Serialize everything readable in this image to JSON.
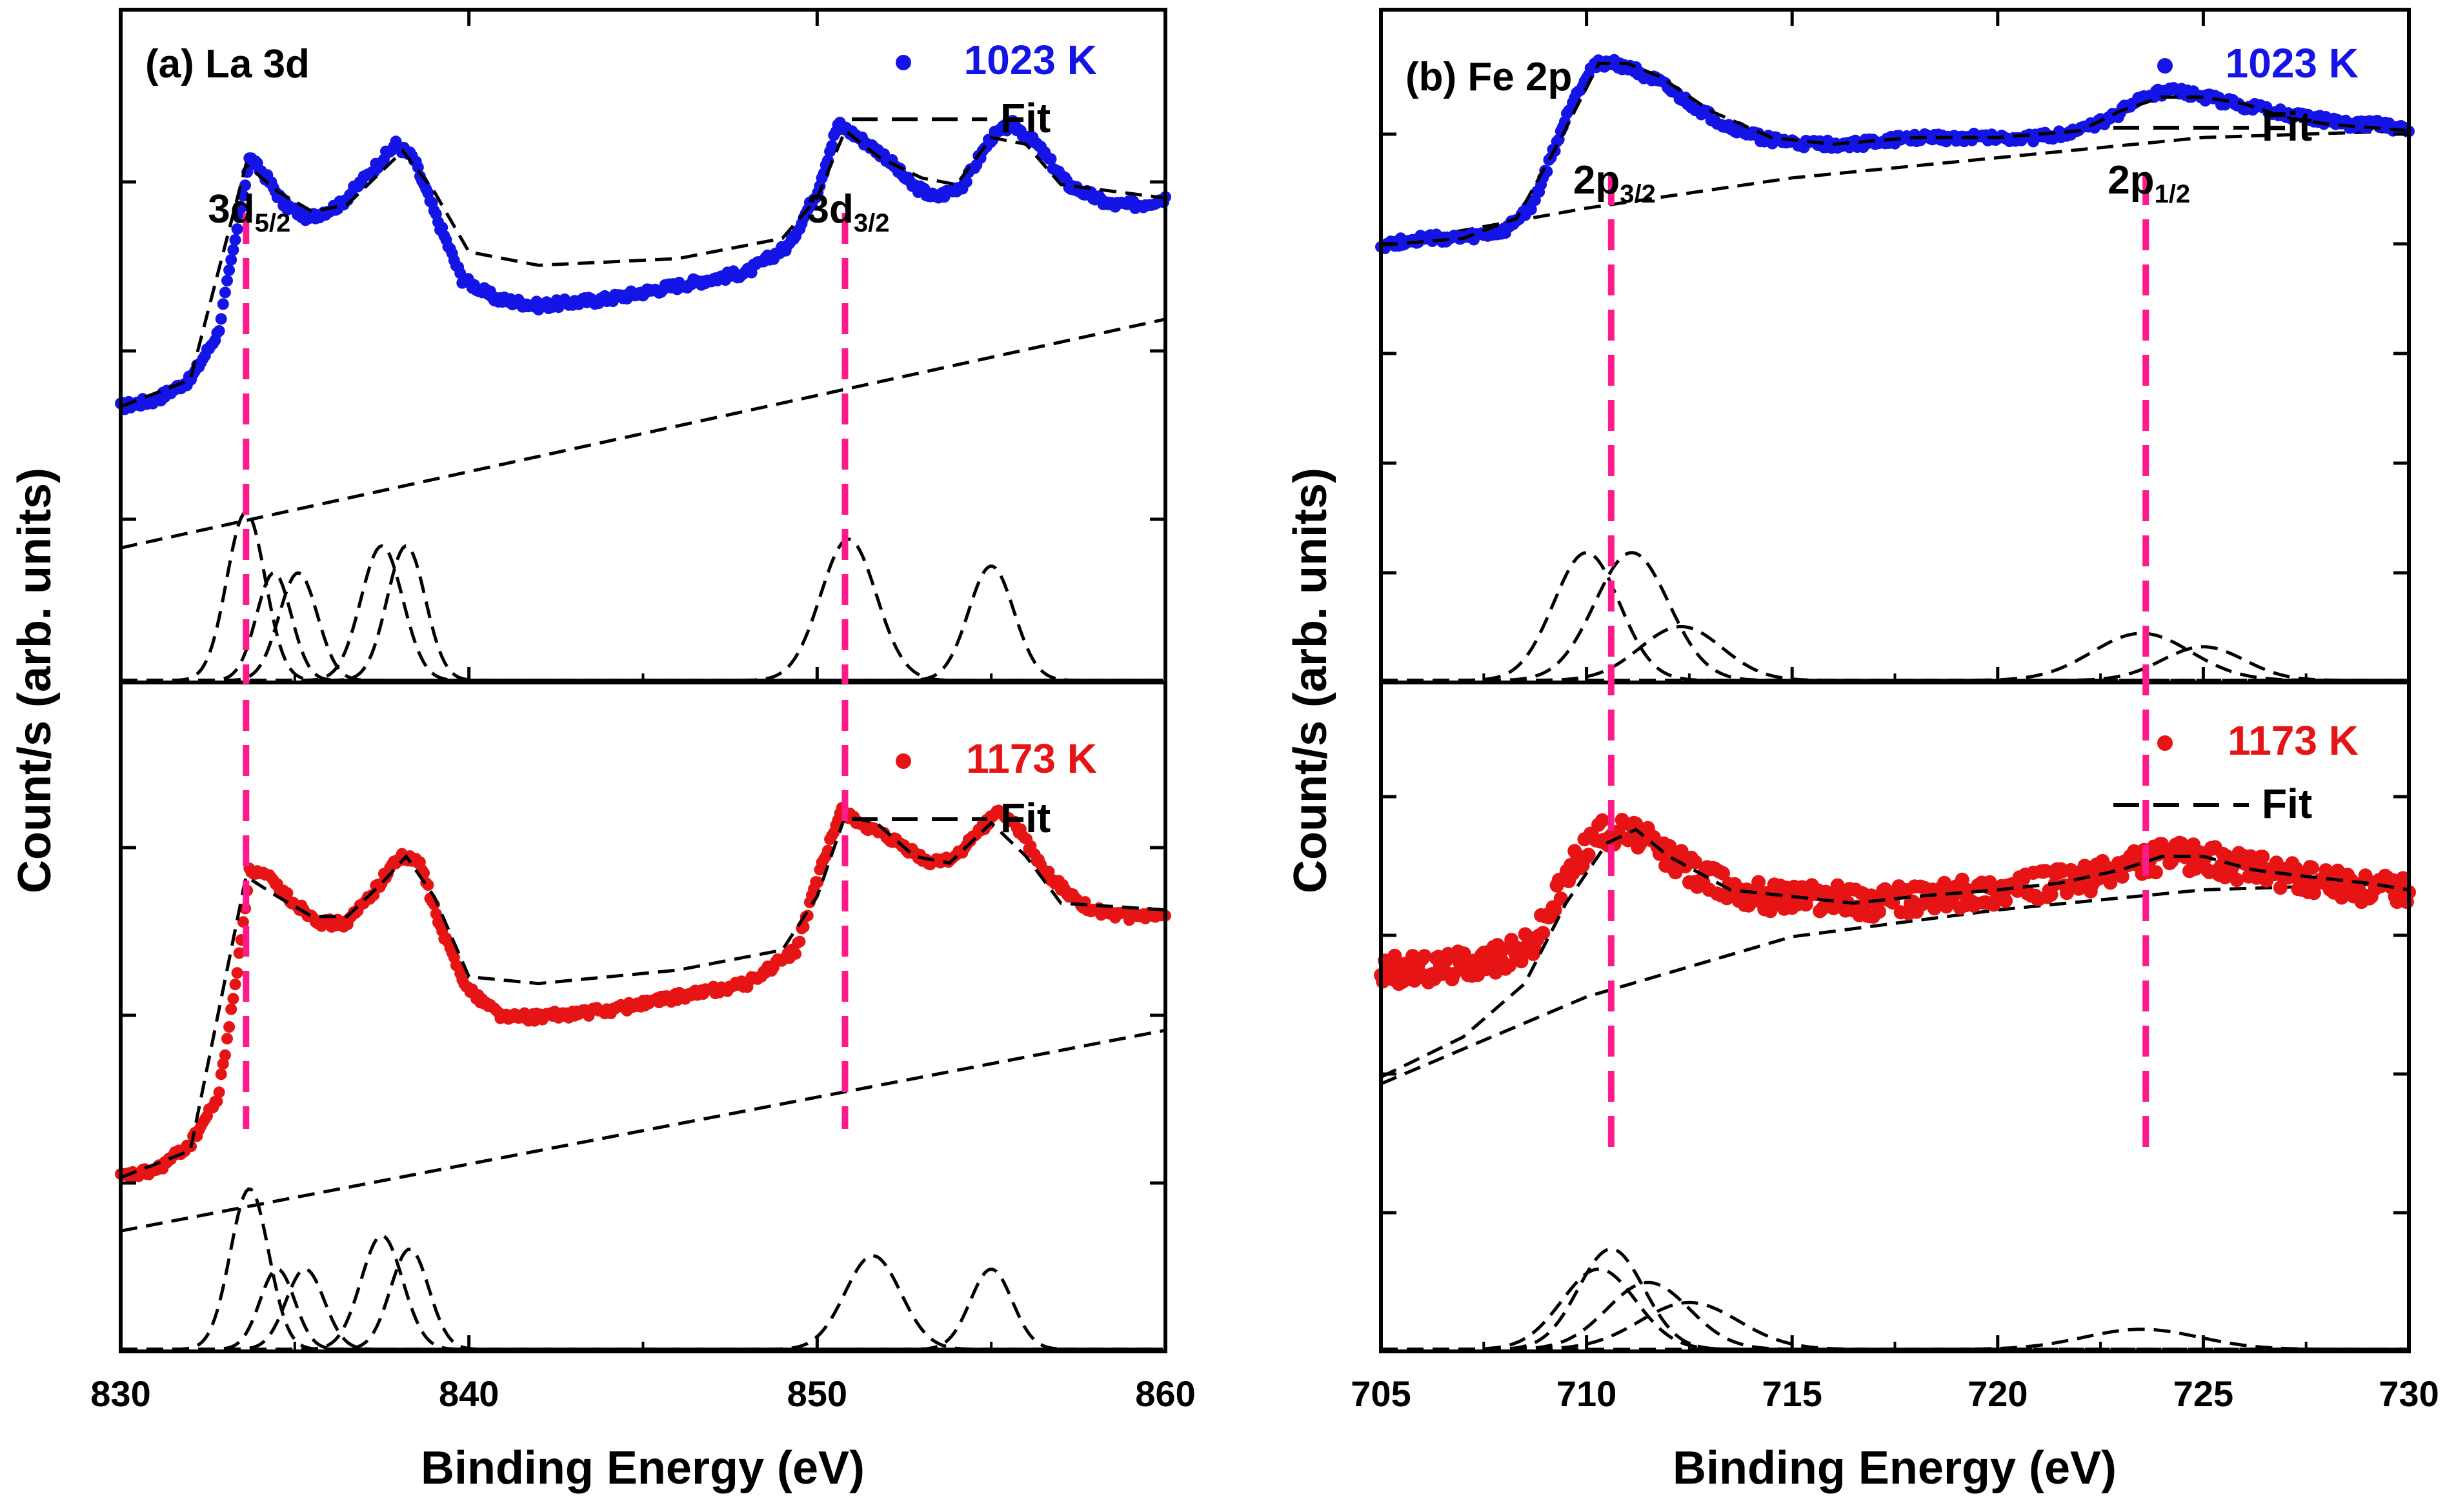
{
  "ylabel": "Count/s (arb. units)",
  "colors": {
    "series_1023": "#1414e6",
    "series_1173": "#e61414",
    "marker_line": "#ff1a8c",
    "fit": "#000000"
  },
  "chart_data": [
    {
      "id": "la3d",
      "type": "scatter",
      "panel_label": "(a) La 3d",
      "xlabel": "Binding Energy (eV)",
      "ylabel": "Count/s (arb. units)",
      "xlim": [
        830,
        860
      ],
      "x_ticks": [
        "830",
        "840",
        "850",
        "860"
      ],
      "peak_labels": [
        {
          "base": "3d",
          "sub": "5/2",
          "x": 833.6
        },
        {
          "base": "3d",
          "sub": "3/2",
          "x": 850.8
        }
      ],
      "subplots": [
        {
          "legend": {
            "series": "1023 K",
            "fit": "Fit"
          },
          "color": "#1414e6",
          "note": "intensity in arbitrary units (0 = panel baseline, 1 = panel top)",
          "data": {
            "x": [
              830,
              831,
              832,
              832.8,
              833.3,
              833.7,
              834.2,
              834.7,
              835.4,
              836.3,
              837.2,
              837.9,
              838.4,
              839,
              839.8,
              840.8,
              842,
              844,
              846,
              848,
              849.2,
              850,
              850.6,
              851.2,
              852,
              852.7,
              853.4,
              854.2,
              855,
              855.6,
              856.3,
              857.2,
              858.4,
              859.3,
              860
            ],
            "y": [
              0.41,
              0.42,
              0.45,
              0.52,
              0.66,
              0.78,
              0.75,
              0.71,
              0.69,
              0.71,
              0.76,
              0.8,
              0.78,
              0.7,
              0.6,
              0.57,
              0.56,
              0.57,
              0.59,
              0.61,
              0.65,
              0.73,
              0.83,
              0.81,
              0.78,
              0.74,
              0.72,
              0.74,
              0.81,
              0.83,
              0.8,
              0.74,
              0.71,
              0.71,
              0.72
            ]
          },
          "fit": {
            "x": [
              830,
              832,
              833.6,
              834.5,
              835.5,
              836.5,
              837.5,
              838.1,
              839,
              840,
              842,
              846,
              849,
              850,
              850.8,
              851.8,
              853,
              854,
              855,
              856,
              857,
              860
            ],
            "y": [
              0.41,
              0.45,
              0.77,
              0.73,
              0.7,
              0.71,
              0.76,
              0.79,
              0.73,
              0.64,
              0.62,
              0.63,
              0.66,
              0.72,
              0.82,
              0.78,
              0.75,
              0.74,
              0.81,
              0.8,
              0.74,
              0.72
            ]
          },
          "background": {
            "x": [
              830,
              860
            ],
            "y": [
              0.2,
              0.54
            ]
          },
          "components": [
            {
              "center": 833.6,
              "amp": 0.25,
              "width": 0.55
            },
            {
              "center": 834.4,
              "amp": 0.16,
              "width": 0.5
            },
            {
              "center": 835.1,
              "amp": 0.16,
              "width": 0.55
            },
            {
              "center": 837.5,
              "amp": 0.2,
              "width": 0.6
            },
            {
              "center": 838.2,
              "amp": 0.2,
              "width": 0.55
            },
            {
              "center": 850.9,
              "amp": 0.21,
              "width": 0.8
            },
            {
              "center": 855.0,
              "amp": 0.17,
              "width": 0.65
            }
          ]
        },
        {
          "legend": {
            "series": "1173 K",
            "fit": "Fit"
          },
          "color": "#e61414",
          "data": {
            "x": [
              830,
              831,
              832,
              832.8,
              833.3,
              833.7,
              834.2,
              835,
              835.8,
              836.5,
              837.3,
              838,
              838.6,
              839.2,
              840,
              841,
              842,
              844,
              846,
              848,
              849.4,
              850.1,
              850.7,
              851.5,
              852.3,
              853.2,
              854,
              854.7,
              855.2,
              855.8,
              856.5,
              857.5,
              858.5,
              860
            ],
            "y": [
              0.26,
              0.27,
              0.31,
              0.38,
              0.55,
              0.72,
              0.71,
              0.67,
              0.64,
              0.64,
              0.69,
              0.74,
              0.73,
              0.63,
              0.54,
              0.5,
              0.5,
              0.51,
              0.53,
              0.55,
              0.6,
              0.72,
              0.81,
              0.78,
              0.76,
              0.73,
              0.74,
              0.78,
              0.81,
              0.78,
              0.72,
              0.67,
              0.65,
              0.65
            ]
          },
          "fit": {
            "x": [
              830,
              832,
              833.6,
              834.5,
              835.5,
              836.5,
              837.5,
              838.2,
              839,
              840,
              842,
              846,
              849,
              850,
              850.8,
              851.7,
              852.8,
              853.8,
              855,
              856,
              857,
              860
            ],
            "y": [
              0.26,
              0.3,
              0.71,
              0.68,
              0.65,
              0.65,
              0.7,
              0.74,
              0.68,
              0.56,
              0.55,
              0.57,
              0.6,
              0.68,
              0.8,
              0.79,
              0.74,
              0.73,
              0.79,
              0.74,
              0.67,
              0.66
            ]
          },
          "background": {
            "x": [
              830,
              860
            ],
            "y": [
              0.18,
              0.48
            ]
          },
          "components": [
            {
              "center": 833.7,
              "amp": 0.24,
              "width": 0.55
            },
            {
              "center": 834.5,
              "amp": 0.12,
              "width": 0.5
            },
            {
              "center": 835.3,
              "amp": 0.12,
              "width": 0.55
            },
            {
              "center": 837.5,
              "amp": 0.17,
              "width": 0.6
            },
            {
              "center": 838.3,
              "amp": 0.15,
              "width": 0.55
            },
            {
              "center": 851.6,
              "amp": 0.14,
              "width": 0.8
            },
            {
              "center": 855.0,
              "amp": 0.12,
              "width": 0.6
            }
          ]
        }
      ]
    },
    {
      "id": "fe2p",
      "type": "scatter",
      "panel_label": "(b) Fe 2p",
      "xlabel": "Binding Energy (eV)",
      "ylabel": "Count/s (arb. units)",
      "xlim": [
        705,
        730
      ],
      "x_ticks": [
        "705",
        "710",
        "715",
        "720",
        "725",
        "730"
      ],
      "peak_labels": [
        {
          "base": "2p",
          "sub": "3/2",
          "x": 710.6
        },
        {
          "base": "2p",
          "sub": "1/2",
          "x": 723.6
        }
      ],
      "subplots": [
        {
          "legend": {
            "series": "1023 K",
            "fit": "Fit"
          },
          "color": "#1414e6",
          "data": {
            "x": [
              705,
              706,
              707,
              708,
              708.7,
              709.2,
              709.7,
              710.2,
              710.7,
              711.2,
              711.8,
              712.5,
              713.3,
              714.2,
              715.2,
              716.5,
              718,
              719.5,
              721,
              722,
              722.8,
              723.5,
              724.2,
              725,
              725.8,
              726.6,
              727.5,
              728.5,
              729.3,
              730
            ],
            "y": [
              0.65,
              0.66,
              0.66,
              0.67,
              0.71,
              0.79,
              0.87,
              0.92,
              0.92,
              0.91,
              0.89,
              0.86,
              0.83,
              0.81,
              0.8,
              0.8,
              0.81,
              0.81,
              0.81,
              0.82,
              0.84,
              0.87,
              0.88,
              0.87,
              0.86,
              0.85,
              0.84,
              0.83,
              0.83,
              0.82
            ]
          },
          "fit": {
            "x": [
              705,
              707,
              708.3,
              709.3,
              710.3,
              711,
              711.8,
              713,
              714.5,
              716,
              718,
              720,
              722,
              723,
              724,
              725,
              726,
              727,
              728,
              730
            ],
            "y": [
              0.65,
              0.66,
              0.69,
              0.8,
              0.92,
              0.92,
              0.9,
              0.85,
              0.81,
              0.8,
              0.81,
              0.81,
              0.82,
              0.85,
              0.87,
              0.87,
              0.86,
              0.84,
              0.83,
              0.82
            ]
          },
          "background": {
            "x": [
              705,
              710,
              715,
              720,
              725,
              730
            ],
            "y": [
              0.65,
              0.705,
              0.75,
              0.78,
              0.81,
              0.82
            ]
          },
          "components": [
            {
              "center": 710.0,
              "amp": 0.19,
              "width": 0.8
            },
            {
              "center": 711.1,
              "amp": 0.19,
              "width": 0.9
            },
            {
              "center": 712.3,
              "amp": 0.08,
              "width": 1.0
            },
            {
              "center": 723.5,
              "amp": 0.07,
              "width": 1.2
            },
            {
              "center": 725.0,
              "amp": 0.05,
              "width": 1.0
            }
          ]
        },
        {
          "legend": {
            "series": "1173 K",
            "fit": "Fit"
          },
          "color": "#e61414",
          "data": {
            "x": [
              705,
              706,
              707,
              708,
              708.7,
              709.2,
              709.7,
              710.2,
              710.7,
              711.3,
              712,
              712.8,
              713.6,
              714.5,
              715.5,
              717,
              718.5,
              720,
              721.5,
              722.5,
              723.3,
              724,
              724.7,
              725.5,
              726.3,
              727,
              728,
              729,
              730
            ],
            "y": [
              0.57,
              0.57,
              0.58,
              0.59,
              0.61,
              0.67,
              0.73,
              0.77,
              0.78,
              0.77,
              0.74,
              0.71,
              0.69,
              0.68,
              0.68,
              0.67,
              0.68,
              0.69,
              0.7,
              0.71,
              0.73,
              0.74,
              0.74,
              0.73,
              0.72,
              0.71,
              0.7,
              0.69,
              0.69
            ]
          },
          "fit": {
            "x": [
              705,
              707,
              708.5,
              709.5,
              710.5,
              711.2,
              712,
              713.5,
              715,
              716.5,
              718,
              720,
              721.5,
              723,
              724,
              725,
              726.2,
              727.5,
              729,
              730
            ],
            "y": [
              0.41,
              0.47,
              0.55,
              0.67,
              0.76,
              0.78,
              0.74,
              0.69,
              0.68,
              0.67,
              0.68,
              0.69,
              0.7,
              0.72,
              0.74,
              0.74,
              0.72,
              0.71,
              0.7,
              0.69
            ]
          },
          "background": {
            "x": [
              705,
              710,
              715,
              720,
              725,
              730
            ],
            "y": [
              0.4,
              0.53,
              0.62,
              0.66,
              0.69,
              0.7
            ]
          },
          "components": [
            {
              "center": 710.3,
              "amp": 0.12,
              "width": 0.9
            },
            {
              "center": 710.6,
              "amp": 0.15,
              "width": 0.8
            },
            {
              "center": 711.5,
              "amp": 0.1,
              "width": 1.0
            },
            {
              "center": 712.5,
              "amp": 0.07,
              "width": 1.2
            },
            {
              "center": 723.5,
              "amp": 0.03,
              "width": 1.4
            }
          ]
        }
      ]
    }
  ]
}
